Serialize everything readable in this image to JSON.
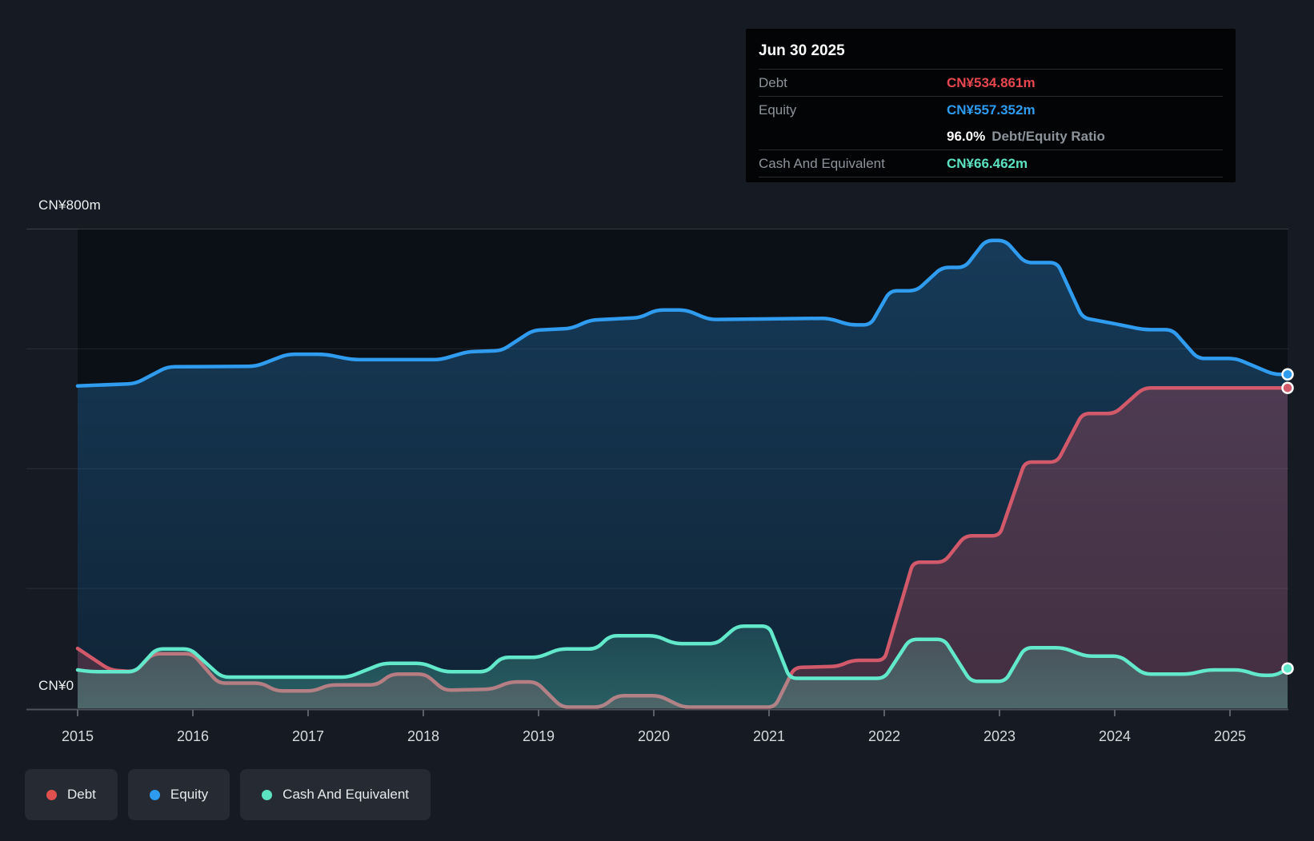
{
  "page": {
    "background": "#161b23"
  },
  "tooltip": {
    "date": "Jun 30 2025",
    "debt": {
      "label": "Debt",
      "value": "CN¥534.861m",
      "color": "#e8474f"
    },
    "equity": {
      "label": "Equity",
      "value": "CN¥557.352m",
      "color": "#2d9cf0"
    },
    "ratio": {
      "value": "96.0%",
      "label": "Debt/Equity Ratio"
    },
    "cash": {
      "label": "Cash And Equivalent",
      "value": "CN¥66.462m",
      "color": "#5ce3c2"
    }
  },
  "legend": {
    "items": [
      {
        "label": "Debt",
        "color": "#e0504e"
      },
      {
        "label": "Equity",
        "color": "#2d9cf0"
      },
      {
        "label": "Cash And Equivalent",
        "color": "#5ce3c2"
      }
    ]
  },
  "chart_data": {
    "type": "area",
    "title": "Debt to Equity history",
    "unit": "CN¥ millions",
    "x_range": [
      2015,
      2025.5
    ],
    "x_ticks": [
      2015,
      2016,
      2017,
      2018,
      2019,
      2020,
      2021,
      2022,
      2023,
      2024,
      2025
    ],
    "y_axis": {
      "max": 800,
      "top_label": "CN¥800m",
      "zero_label": "CN¥0",
      "gridline_values": [
        800,
        600,
        400,
        200
      ]
    },
    "legend_position": "bottom-left",
    "series": [
      {
        "name": "Equity",
        "color": "#2f9cf0",
        "fill_top": "rgba(47,156,240,0.30)",
        "fill_bottom": "rgba(47,156,240,0.14)",
        "end_value": 557.352,
        "points": [
          [
            2015.0,
            538
          ],
          [
            2015.5,
            542
          ],
          [
            2015.78,
            570
          ],
          [
            2016.55,
            571
          ],
          [
            2016.82,
            591
          ],
          [
            2017.15,
            591
          ],
          [
            2017.38,
            582
          ],
          [
            2018.15,
            582
          ],
          [
            2018.38,
            595
          ],
          [
            2018.68,
            597
          ],
          [
            2018.95,
            631
          ],
          [
            2019.28,
            634
          ],
          [
            2019.45,
            648
          ],
          [
            2019.88,
            652
          ],
          [
            2020.02,
            665
          ],
          [
            2020.28,
            665
          ],
          [
            2020.48,
            649
          ],
          [
            2021.52,
            651
          ],
          [
            2021.7,
            640
          ],
          [
            2021.88,
            640
          ],
          [
            2022.05,
            697
          ],
          [
            2022.28,
            697
          ],
          [
            2022.5,
            736
          ],
          [
            2022.7,
            736
          ],
          [
            2022.88,
            781
          ],
          [
            2023.05,
            781
          ],
          [
            2023.22,
            744
          ],
          [
            2023.5,
            744
          ],
          [
            2023.72,
            652
          ],
          [
            2024.05,
            640
          ],
          [
            2024.25,
            632
          ],
          [
            2024.5,
            632
          ],
          [
            2024.72,
            584
          ],
          [
            2025.05,
            584
          ],
          [
            2025.38,
            557.4
          ],
          [
            2025.5,
            557.4
          ]
        ]
      },
      {
        "name": "Debt",
        "color": "#d2596a",
        "fill_top": "rgba(226,80,95,0.28)",
        "fill_bottom": "rgba(226,80,95,0.24)",
        "end_value": 534.861,
        "points": [
          [
            2015.0,
            100
          ],
          [
            2015.28,
            64
          ],
          [
            2015.5,
            61
          ],
          [
            2015.65,
            91
          ],
          [
            2016.0,
            91
          ],
          [
            2016.22,
            42
          ],
          [
            2016.6,
            42
          ],
          [
            2016.72,
            29
          ],
          [
            2017.05,
            29
          ],
          [
            2017.18,
            39
          ],
          [
            2017.6,
            39
          ],
          [
            2017.72,
            57
          ],
          [
            2018.02,
            57
          ],
          [
            2018.18,
            30
          ],
          [
            2018.6,
            32
          ],
          [
            2018.75,
            44
          ],
          [
            2018.98,
            44
          ],
          [
            2019.2,
            2
          ],
          [
            2019.55,
            2
          ],
          [
            2019.68,
            21
          ],
          [
            2020.05,
            21
          ],
          [
            2020.25,
            2
          ],
          [
            2021.05,
            2
          ],
          [
            2021.22,
            68
          ],
          [
            2021.6,
            70
          ],
          [
            2021.72,
            80
          ],
          [
            2022.0,
            80
          ],
          [
            2022.25,
            244
          ],
          [
            2022.52,
            244
          ],
          [
            2022.7,
            288
          ],
          [
            2023.0,
            288
          ],
          [
            2023.22,
            411
          ],
          [
            2023.5,
            411
          ],
          [
            2023.72,
            492
          ],
          [
            2024.0,
            492
          ],
          [
            2024.25,
            534.9
          ],
          [
            2025.5,
            534.9
          ]
        ]
      },
      {
        "name": "Cash And Equivalent",
        "color": "#62e8cb",
        "fill_top": "rgba(98,232,203,0.16)",
        "fill_bottom": "rgba(98,232,203,0.30)",
        "end_value": 66.462,
        "points": [
          [
            2015.0,
            64
          ],
          [
            2015.12,
            61
          ],
          [
            2015.5,
            61
          ],
          [
            2015.68,
            99
          ],
          [
            2015.98,
            99
          ],
          [
            2016.25,
            52
          ],
          [
            2017.35,
            52
          ],
          [
            2017.65,
            75
          ],
          [
            2018.0,
            75
          ],
          [
            2018.18,
            61
          ],
          [
            2018.55,
            61
          ],
          [
            2018.68,
            85
          ],
          [
            2019.0,
            85
          ],
          [
            2019.18,
            99
          ],
          [
            2019.5,
            99
          ],
          [
            2019.62,
            121
          ],
          [
            2020.02,
            121
          ],
          [
            2020.18,
            108
          ],
          [
            2020.55,
            108
          ],
          [
            2020.72,
            137
          ],
          [
            2021.0,
            137
          ],
          [
            2021.18,
            50
          ],
          [
            2022.0,
            50
          ],
          [
            2022.22,
            115
          ],
          [
            2022.52,
            115
          ],
          [
            2022.75,
            45
          ],
          [
            2023.05,
            45
          ],
          [
            2023.22,
            101
          ],
          [
            2023.55,
            101
          ],
          [
            2023.75,
            87
          ],
          [
            2024.05,
            87
          ],
          [
            2024.25,
            57
          ],
          [
            2024.65,
            57
          ],
          [
            2024.8,
            64
          ],
          [
            2025.1,
            64
          ],
          [
            2025.25,
            55
          ],
          [
            2025.4,
            55
          ],
          [
            2025.5,
            66.5
          ]
        ]
      }
    ]
  }
}
